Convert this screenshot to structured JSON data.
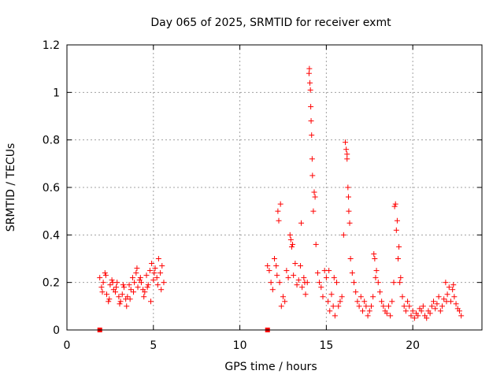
{
  "chart_data": {
    "type": "scatter",
    "title": "Day 065 of 2025, SRMTID for receiver exmt",
    "xlabel": "GPS time / hours",
    "ylabel": "SRMTID / TECUs",
    "xlim": [
      0,
      24
    ],
    "ylim": [
      0,
      1.2
    ],
    "xticks": [
      0,
      5,
      10,
      15,
      20
    ],
    "xtick_labels": [
      "0",
      "5",
      "10",
      "15",
      "20"
    ],
    "yticks": [
      0,
      0.2,
      0.4,
      0.6,
      0.8,
      1.0,
      1.2
    ],
    "ytick_labels": [
      "0",
      "0.2",
      "0.4",
      "0.6",
      "0.8",
      "1",
      "1.2"
    ],
    "grid": true,
    "marker": "plus",
    "color": "#ff0000",
    "series": [
      {
        "name": "SRMTID",
        "x": [
          1.9,
          2.0,
          2.1,
          2.2,
          2.3,
          2.4,
          2.5,
          2.6,
          2.7,
          2.8,
          2.9,
          3.0,
          3.1,
          3.2,
          3.3,
          3.4,
          3.5,
          3.6,
          3.7,
          3.8,
          3.9,
          4.0,
          4.1,
          4.2,
          4.3,
          4.4,
          4.5,
          4.6,
          4.7,
          4.8,
          4.9,
          5.0,
          5.1,
          5.2,
          5.3,
          5.4,
          5.5,
          5.6,
          2.05,
          2.25,
          2.45,
          2.65,
          2.85,
          3.05,
          3.25,
          3.45,
          3.65,
          3.85,
          4.05,
          4.25,
          4.45,
          4.65,
          4.85,
          5.05,
          5.25,
          5.45,
          11.6,
          11.7,
          11.8,
          11.9,
          12.0,
          12.1,
          12.15,
          12.2,
          12.3,
          12.4,
          12.5,
          12.6,
          12.7,
          12.8,
          12.9,
          13.0,
          13.1,
          13.2,
          13.3,
          13.4,
          13.5,
          13.6,
          13.7,
          13.8,
          13.9,
          14.0,
          14.05,
          14.1,
          14.15,
          14.2,
          14.3,
          14.4,
          14.5,
          14.6,
          14.7,
          14.8,
          14.9,
          15.0,
          15.1,
          15.2,
          15.3,
          15.4,
          15.5,
          15.6,
          15.7,
          15.8,
          15.9,
          16.0,
          16.1,
          16.2,
          16.25,
          16.3,
          16.4,
          16.5,
          16.6,
          16.7,
          16.8,
          16.9,
          17.0,
          17.1,
          17.2,
          17.3,
          17.4,
          17.5,
          17.6,
          17.7,
          17.8,
          17.9,
          18.0,
          18.1,
          18.2,
          18.3,
          18.4,
          18.5,
          18.6,
          18.7,
          18.8,
          18.9,
          19.0,
          19.1,
          19.2,
          19.3,
          19.4,
          19.5,
          19.6,
          19.7,
          19.8,
          19.9,
          20.0,
          20.1,
          20.2,
          20.3,
          20.4,
          20.5,
          20.6,
          20.7,
          20.8,
          20.9,
          21.0,
          21.1,
          21.2,
          21.3,
          21.4,
          21.5,
          21.6,
          21.7,
          21.8,
          21.9,
          22.0,
          22.1,
          22.2,
          22.3,
          22.4,
          22.5,
          22.6,
          22.7,
          22.8,
          12.25,
          12.35,
          12.95,
          13.05,
          13.55,
          13.75,
          14.02,
          14.08,
          14.12,
          14.18,
          14.25,
          14.35,
          15.15,
          15.45,
          16.15,
          16.2,
          16.28,
          16.35,
          17.75,
          17.85,
          18.95,
          19.05,
          19.15,
          19.25,
          21.95,
          22.35
        ],
        "y": [
          0.22,
          0.18,
          0.2,
          0.24,
          0.15,
          0.12,
          0.19,
          0.21,
          0.17,
          0.16,
          0.2,
          0.14,
          0.12,
          0.15,
          0.18,
          0.13,
          0.14,
          0.19,
          0.17,
          0.22,
          0.2,
          0.24,
          0.18,
          0.21,
          0.2,
          0.17,
          0.16,
          0.23,
          0.19,
          0.25,
          0.28,
          0.21,
          0.26,
          0.22,
          0.3,
          0.24,
          0.27,
          0.2,
          0.16,
          0.23,
          0.13,
          0.2,
          0.18,
          0.11,
          0.19,
          0.1,
          0.13,
          0.16,
          0.26,
          0.22,
          0.14,
          0.18,
          0.12,
          0.24,
          0.19,
          0.17,
          0.27,
          0.25,
          0.2,
          0.17,
          0.3,
          0.27,
          0.23,
          0.5,
          0.2,
          0.1,
          0.14,
          0.12,
          0.25,
          0.22,
          0.4,
          0.35,
          0.23,
          0.28,
          0.19,
          0.21,
          0.27,
          0.18,
          0.22,
          0.15,
          0.2,
          1.08,
          1.04,
          0.94,
          0.82,
          0.65,
          0.58,
          0.36,
          0.24,
          0.2,
          0.18,
          0.14,
          0.25,
          0.22,
          0.12,
          0.08,
          0.15,
          0.1,
          0.06,
          0.2,
          0.1,
          0.12,
          0.14,
          0.4,
          0.79,
          0.72,
          0.6,
          0.5,
          0.3,
          0.24,
          0.2,
          0.16,
          0.12,
          0.1,
          0.14,
          0.08,
          0.12,
          0.1,
          0.06,
          0.08,
          0.1,
          0.14,
          0.3,
          0.25,
          0.2,
          0.16,
          0.12,
          0.1,
          0.08,
          0.07,
          0.1,
          0.06,
          0.12,
          0.2,
          0.53,
          0.46,
          0.35,
          0.22,
          0.14,
          0.1,
          0.08,
          0.12,
          0.1,
          0.06,
          0.08,
          0.05,
          0.07,
          0.06,
          0.09,
          0.08,
          0.1,
          0.06,
          0.05,
          0.08,
          0.07,
          0.1,
          0.12,
          0.09,
          0.11,
          0.14,
          0.08,
          0.1,
          0.13,
          0.2,
          0.15,
          0.18,
          0.12,
          0.17,
          0.14,
          0.11,
          0.09,
          0.08,
          0.06,
          0.46,
          0.53,
          0.38,
          0.36,
          0.45,
          0.2,
          1.1,
          1.01,
          0.88,
          0.72,
          0.5,
          0.56,
          0.25,
          0.22,
          0.76,
          0.74,
          0.56,
          0.45,
          0.32,
          0.22,
          0.52,
          0.42,
          0.3,
          0.2,
          0.12,
          0.19
        ]
      }
    ],
    "flags": [
      {
        "x": 1.9,
        "y": 0
      },
      {
        "x": 11.6,
        "y": 0
      }
    ]
  }
}
